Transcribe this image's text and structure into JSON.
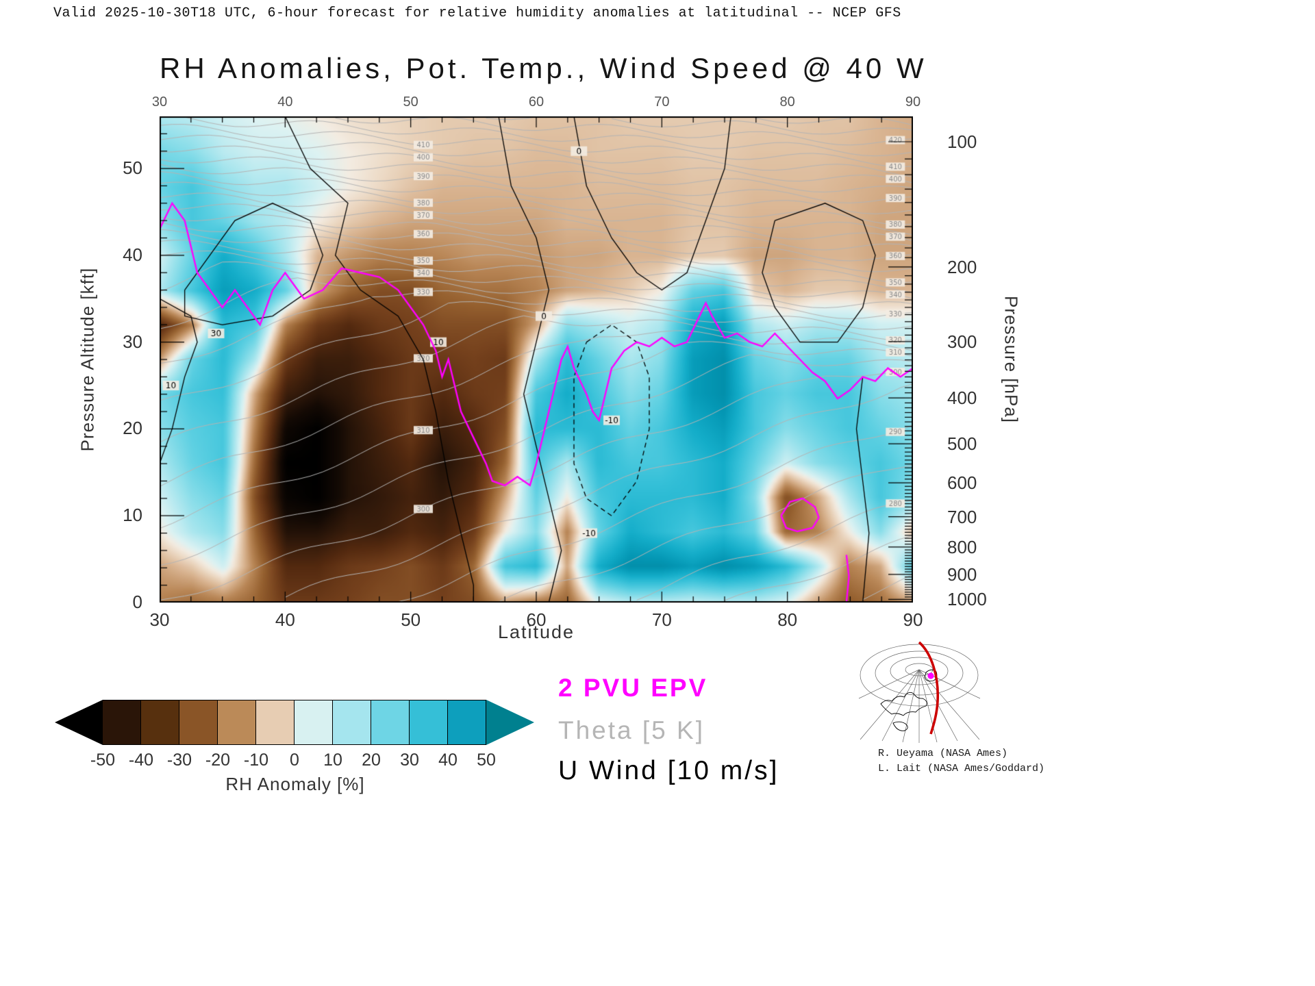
{
  "header": {
    "valid_line": "Valid 2025-10-30T18 UTC, 6-hour forecast for relative humidity anomalies at latitudinal -- NCEP GFS"
  },
  "title": "RH Anomalies, Pot. Temp., Wind Speed @ 40 W",
  "axes": {
    "x_label": "Latitude",
    "y_left_label": "Pressure Altitude [kft]",
    "y_right_label": "Pressure [hPa]",
    "x_ticks": [
      30,
      40,
      50,
      60,
      70,
      80,
      90
    ],
    "y_left_ticks": [
      0,
      10,
      20,
      30,
      40,
      50
    ],
    "y_right_ticks": [
      100,
      200,
      300,
      400,
      500,
      600,
      700,
      800,
      900,
      1000
    ],
    "x_range": [
      30,
      90
    ],
    "y_range_kft": [
      0,
      56
    ]
  },
  "chart_data": {
    "type": "heatmap",
    "title": "RH Anomalies, Pot. Temp., Wind Speed @ 40 W",
    "x_latitudes": [
      30,
      32.5,
      35,
      37.5,
      40,
      42.5,
      45,
      47.5,
      50,
      52.5,
      55,
      57.5,
      60,
      62.5,
      65,
      67.5,
      70,
      72.5,
      75,
      77.5,
      80,
      82.5,
      85,
      87.5,
      90
    ],
    "y_altitudes_kft": [
      0,
      4,
      8,
      12,
      16,
      20,
      24,
      28,
      32,
      36,
      40,
      44,
      48,
      52,
      56
    ],
    "values_rh_anomaly_pct": [
      [
        -15,
        -18,
        -15,
        -20,
        -30,
        -30,
        -28,
        -25,
        -25,
        -28,
        -25,
        -10,
        -15,
        -20,
        5,
        10,
        10,
        8,
        10,
        10,
        5,
        -10,
        -22,
        -18,
        -10
      ],
      [
        -10,
        -5,
        5,
        -15,
        -35,
        -35,
        -30,
        -28,
        -25,
        -30,
        -20,
        25,
        30,
        -10,
        35,
        45,
        45,
        40,
        45,
        40,
        30,
        10,
        -15,
        -10,
        20
      ],
      [
        0,
        10,
        15,
        -20,
        -45,
        -45,
        -40,
        -40,
        -35,
        -38,
        -30,
        0,
        15,
        -15,
        20,
        35,
        30,
        25,
        30,
        20,
        -20,
        -15,
        0,
        15,
        -5
      ],
      [
        5,
        15,
        20,
        -25,
        -52,
        -55,
        -45,
        -42,
        -38,
        -42,
        -35,
        -10,
        20,
        0,
        25,
        30,
        30,
        30,
        35,
        15,
        -25,
        -10,
        10,
        25,
        15
      ],
      [
        10,
        20,
        25,
        -20,
        -55,
        -55,
        -45,
        -40,
        -35,
        -45,
        -38,
        -20,
        25,
        10,
        30,
        25,
        25,
        30,
        35,
        20,
        5,
        15,
        20,
        25,
        18
      ],
      [
        15,
        22,
        25,
        -15,
        -50,
        -55,
        -45,
        -38,
        -30,
        -40,
        -35,
        -25,
        30,
        30,
        30,
        20,
        25,
        35,
        40,
        25,
        15,
        20,
        25,
        20,
        15
      ],
      [
        18,
        25,
        28,
        -10,
        -40,
        -45,
        -42,
        -35,
        -30,
        -35,
        -30,
        -28,
        25,
        35,
        25,
        15,
        20,
        40,
        45,
        25,
        20,
        25,
        25,
        15,
        12
      ],
      [
        -10,
        20,
        30,
        10,
        -30,
        -40,
        -40,
        -35,
        -30,
        -30,
        -28,
        -30,
        10,
        30,
        20,
        10,
        15,
        40,
        45,
        20,
        15,
        20,
        20,
        10,
        8
      ],
      [
        -35,
        -15,
        30,
        25,
        -15,
        -30,
        -35,
        -30,
        -28,
        -25,
        -25,
        -25,
        -10,
        15,
        10,
        5,
        10,
        35,
        40,
        10,
        5,
        10,
        10,
        5,
        5
      ],
      [
        10,
        25,
        40,
        35,
        20,
        -10,
        -20,
        -25,
        -25,
        -20,
        -18,
        -18,
        -15,
        -10,
        -8,
        -5,
        0,
        20,
        25,
        -5,
        -8,
        -5,
        -5,
        -8,
        -8
      ],
      [
        5,
        20,
        35,
        25,
        10,
        -8,
        -12,
        -15,
        -15,
        -14,
        -12,
        -12,
        -12,
        -10,
        -10,
        -8,
        -8,
        -5,
        -5,
        -10,
        -10,
        -8,
        -8,
        -10,
        -10
      ],
      [
        15,
        25,
        20,
        12,
        8,
        0,
        -5,
        -8,
        -10,
        -10,
        -10,
        -10,
        -10,
        -8,
        -8,
        -8,
        -8,
        -6,
        -6,
        -8,
        -8,
        -8,
        -8,
        -10,
        -10
      ],
      [
        20,
        25,
        15,
        10,
        10,
        5,
        0,
        -3,
        -6,
        -8,
        -8,
        -8,
        -8,
        -8,
        -7,
        -7,
        -7,
        -6,
        -6,
        -7,
        -7,
        -7,
        -8,
        -9,
        -10
      ],
      [
        18,
        15,
        8,
        5,
        5,
        3,
        0,
        -2,
        -4,
        -5,
        -6,
        -6,
        -7,
        -7,
        -6,
        -6,
        -6,
        -5,
        -5,
        -6,
        -6,
        -6,
        -7,
        -8,
        -9
      ],
      [
        10,
        8,
        5,
        3,
        2,
        0,
        -2,
        -3,
        -4,
        -5,
        -5,
        -5,
        -6,
        -6,
        -6,
        -5,
        -5,
        -5,
        -5,
        -5,
        -5,
        -6,
        -6,
        -8,
        -9
      ]
    ],
    "colormap_stops": [
      [
        -55,
        "#000000"
      ],
      [
        -48,
        "#140a04"
      ],
      [
        -42,
        "#31190a"
      ],
      [
        -35,
        "#53290f"
      ],
      [
        -28,
        "#74401c"
      ],
      [
        -21,
        "#95602f"
      ],
      [
        -14,
        "#b98757"
      ],
      [
        -8,
        "#d9b491"
      ],
      [
        -3,
        "#ecd9c4"
      ],
      [
        0,
        "#f3ece2"
      ],
      [
        3,
        "#ddf2f2"
      ],
      [
        8,
        "#baeaf0"
      ],
      [
        14,
        "#8fdfea"
      ],
      [
        21,
        "#5ed0e2"
      ],
      [
        28,
        "#35c0d8"
      ],
      [
        35,
        "#14adc9"
      ],
      [
        42,
        "#0497b4"
      ],
      [
        50,
        "#00839d"
      ],
      [
        55,
        "#007a8f"
      ]
    ],
    "colorbar": {
      "label": "RH Anomaly [%]",
      "tick_labels": [
        "-50",
        "-40",
        "-30",
        "-20",
        "-10",
        "0",
        "10",
        "20",
        "30",
        "40",
        "50"
      ],
      "cell_colors": [
        "#2a1508",
        "#57300e",
        "#8a5527",
        "#bb8a58",
        "#e7cdb3",
        "#d8f1f1",
        "#a5e5ee",
        "#6ed5e5",
        "#35bfd7",
        "#0d9fbd"
      ],
      "arrow_left_color": "#000000",
      "arrow_right_color": "#00808f"
    },
    "pvu2_line_segments": [
      [
        [
          30,
          43
        ],
        [
          31,
          46
        ],
        [
          32,
          44
        ],
        [
          33,
          38
        ],
        [
          34,
          36
        ],
        [
          35,
          34
        ],
        [
          36,
          36
        ],
        [
          37,
          34
        ],
        [
          38,
          32
        ],
        [
          39,
          36
        ],
        [
          40,
          38
        ],
        [
          41.5,
          35
        ],
        [
          43,
          36
        ],
        [
          44.5,
          38.5
        ],
        [
          46,
          38
        ],
        [
          47.5,
          37.5
        ],
        [
          49,
          36
        ],
        [
          50,
          34
        ],
        [
          51,
          32
        ],
        [
          52,
          29
        ],
        [
          52.5,
          26
        ],
        [
          53,
          28
        ],
        [
          53.5,
          25
        ],
        [
          54,
          22
        ],
        [
          55,
          19
        ],
        [
          56,
          16
        ],
        [
          56.5,
          14
        ],
        [
          57.5,
          13.5
        ],
        [
          58.5,
          14.5
        ],
        [
          59.5,
          13.5
        ],
        [
          60,
          16
        ],
        [
          60.5,
          19
        ],
        [
          61,
          22
        ],
        [
          61.5,
          25
        ],
        [
          62,
          28
        ],
        [
          62.5,
          29.5
        ],
        [
          63,
          27
        ],
        [
          64,
          24
        ],
        [
          64.5,
          22
        ],
        [
          65,
          21
        ],
        [
          65.5,
          24
        ],
        [
          66,
          27
        ],
        [
          67,
          29
        ],
        [
          68,
          30
        ],
        [
          69,
          29.5
        ],
        [
          70,
          30.5
        ],
        [
          71,
          29.5
        ],
        [
          72,
          30
        ],
        [
          73,
          33
        ],
        [
          73.5,
          34.5
        ],
        [
          74,
          33
        ],
        [
          75,
          30.5
        ],
        [
          76,
          31
        ],
        [
          77,
          30
        ],
        [
          78,
          29.5
        ],
        [
          79,
          31
        ],
        [
          80,
          29.5
        ],
        [
          81,
          28
        ],
        [
          82,
          26.5
        ],
        [
          83,
          25.5
        ],
        [
          84,
          23.5
        ],
        [
          85,
          24.5
        ],
        [
          86,
          26
        ],
        [
          87,
          25.5
        ],
        [
          88,
          27
        ],
        [
          89,
          26
        ],
        [
          90,
          27
        ]
      ],
      [
        [
          79.5,
          10
        ],
        [
          80.2,
          11.6
        ],
        [
          81.2,
          12
        ],
        [
          82.2,
          11
        ],
        [
          82.5,
          9.8
        ],
        [
          82,
          8.6
        ],
        [
          80.8,
          8.2
        ],
        [
          79.9,
          8.6
        ],
        [
          79.5,
          10
        ]
      ],
      [
        [
          84.7,
          0
        ],
        [
          84.9,
          3
        ],
        [
          84.7,
          5.5
        ]
      ]
    ],
    "theta_contours": {
      "interval_K": 5,
      "min": 270,
      "max": 430,
      "label_levels": [
        280,
        290,
        300,
        310,
        320,
        330,
        340,
        350,
        360,
        370,
        380,
        390,
        400,
        410,
        420
      ],
      "label_latitudes": [
        51,
        88.6
      ],
      "model": {
        "theta_sfc_at30": 300,
        "theta_sfc_lat_slope": -0.55,
        "trop_z_at30_kft": 40,
        "trop_z_lat_slope": -0.25,
        "dtheta_dz_trop": 1.1,
        "dtheta_dz_strat": 4.5
      }
    },
    "uwind_contours": [
      {
        "value": 10,
        "style": "solid",
        "points": [
          [
            30,
            16
          ],
          [
            31,
            20
          ],
          [
            32,
            26
          ],
          [
            33,
            30
          ],
          [
            32.5,
            33
          ],
          [
            30,
            35
          ]
        ]
      },
      {
        "value": 30,
        "style": "solid",
        "points": [
          [
            32,
            36
          ],
          [
            34,
            40
          ],
          [
            36,
            44
          ],
          [
            39,
            46
          ],
          [
            42,
            44
          ],
          [
            43,
            40
          ],
          [
            42,
            36
          ],
          [
            39,
            33
          ],
          [
            35,
            32
          ],
          [
            32,
            33
          ],
          [
            32,
            36
          ]
        ]
      },
      {
        "value": 10,
        "style": "solid",
        "points": [
          [
            40,
            56
          ],
          [
            42,
            50
          ],
          [
            45,
            46
          ],
          [
            44,
            40
          ],
          [
            46,
            36
          ],
          [
            49,
            33
          ],
          [
            51,
            28
          ],
          [
            52,
            22
          ],
          [
            53,
            14
          ],
          [
            54,
            8
          ],
          [
            55,
            2
          ],
          [
            55,
            0
          ]
        ]
      },
      {
        "value": 0,
        "style": "solid",
        "points": [
          [
            57,
            56
          ],
          [
            58,
            48
          ],
          [
            60,
            42
          ],
          [
            61,
            36
          ],
          [
            60,
            30
          ],
          [
            59,
            24
          ],
          [
            60,
            18
          ],
          [
            61,
            12
          ],
          [
            62,
            6
          ],
          [
            61,
            0
          ]
        ]
      },
      {
        "value": -10,
        "style": "dashed",
        "points": [
          [
            64,
            30
          ],
          [
            66,
            32
          ],
          [
            68,
            30
          ],
          [
            69,
            26
          ],
          [
            69,
            20
          ],
          [
            68,
            14
          ],
          [
            66,
            10
          ],
          [
            64,
            12
          ],
          [
            63,
            16
          ],
          [
            63,
            22
          ],
          [
            63,
            26
          ],
          [
            64,
            30
          ]
        ]
      },
      {
        "value": 0,
        "style": "solid",
        "points": [
          [
            63,
            56
          ],
          [
            64,
            48
          ],
          [
            66,
            42
          ],
          [
            68,
            38
          ],
          [
            70,
            36
          ],
          [
            72,
            38
          ],
          [
            73,
            42
          ],
          [
            74,
            46
          ],
          [
            75,
            50
          ],
          [
            75.5,
            56
          ]
        ]
      },
      {
        "value": 10,
        "style": "solid",
        "points": [
          [
            79,
            44
          ],
          [
            83,
            46
          ],
          [
            86,
            44
          ],
          [
            87,
            40
          ],
          [
            86,
            34
          ],
          [
            84,
            30
          ],
          [
            81,
            30
          ],
          [
            79,
            34
          ],
          [
            78,
            38
          ],
          [
            79,
            44
          ]
        ]
      },
      {
        "value": 0,
        "style": "solid",
        "points": [
          [
            86,
            0
          ],
          [
            86.5,
            8
          ],
          [
            86,
            14
          ],
          [
            85.5,
            20
          ],
          [
            86,
            26
          ]
        ]
      }
    ],
    "uwind_labels": [
      {
        "text": "30",
        "lat": 34.5,
        "z": 31
      },
      {
        "text": "10",
        "lat": 52.2,
        "z": 30
      },
      {
        "text": "-10",
        "lat": 66,
        "z": 21
      },
      {
        "text": "0",
        "lat": 60.6,
        "z": 33
      },
      {
        "text": "10",
        "lat": 30.9,
        "z": 25
      },
      {
        "text": "0",
        "lat": 63.4,
        "z": 52
      },
      {
        "text": "-10",
        "lat": 64.2,
        "z": 8
      }
    ]
  },
  "legend": {
    "pvu": "2 PVU EPV",
    "theta": "Theta [5 K]",
    "uwind": "U Wind [10 m/s]",
    "colors": {
      "pvu": "#ff00ff",
      "theta": "#b5b5b5",
      "uwind": "#000000"
    }
  },
  "map_inset": {
    "meridian_color": "#cc0000",
    "point_color": "#ff00ff"
  },
  "credits": {
    "line1": "R. Ueyama (NASA Ames)",
    "line2": "L. Lait (NASA Ames/Goddard)"
  }
}
